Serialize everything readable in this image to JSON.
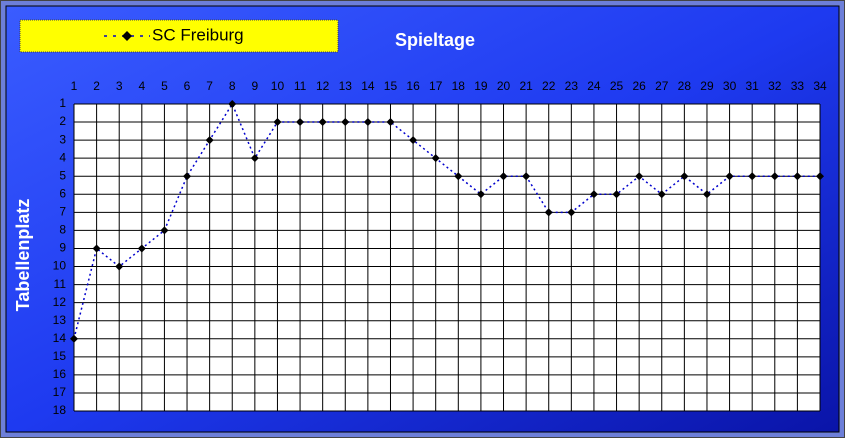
{
  "chart_data": {
    "type": "line",
    "title": "Spieltage",
    "y_label": "Tabellenplatz",
    "x": [
      1,
      2,
      3,
      4,
      5,
      6,
      7,
      8,
      9,
      10,
      11,
      12,
      13,
      14,
      15,
      16,
      17,
      18,
      19,
      20,
      21,
      22,
      23,
      24,
      25,
      26,
      27,
      28,
      29,
      30,
      31,
      32,
      33,
      34
    ],
    "series": [
      {
        "name": "SC Freiburg",
        "color": "#0000cc",
        "values": [
          14,
          9,
          10,
          9,
          8,
          5,
          3,
          1,
          4,
          2,
          2,
          2,
          2,
          2,
          2,
          3,
          4,
          5,
          6,
          5,
          5,
          7,
          7,
          6,
          6,
          5,
          6,
          5,
          6,
          5,
          5,
          5,
          5,
          5
        ]
      }
    ],
    "xlim": [
      1,
      34
    ],
    "xticks": [
      1,
      2,
      3,
      4,
      5,
      6,
      7,
      8,
      9,
      10,
      11,
      12,
      13,
      14,
      15,
      16,
      17,
      18,
      19,
      20,
      21,
      22,
      23,
      24,
      25,
      26,
      27,
      28,
      29,
      30,
      31,
      32,
      33,
      34
    ],
    "ylim": [
      18,
      1
    ],
    "yticks": [
      1,
      2,
      3,
      4,
      5,
      6,
      7,
      8,
      9,
      10,
      11,
      12,
      13,
      14,
      15,
      16,
      17,
      18
    ],
    "grid": true,
    "marker_color": "#000000",
    "legend_color": "#ffff00"
  }
}
